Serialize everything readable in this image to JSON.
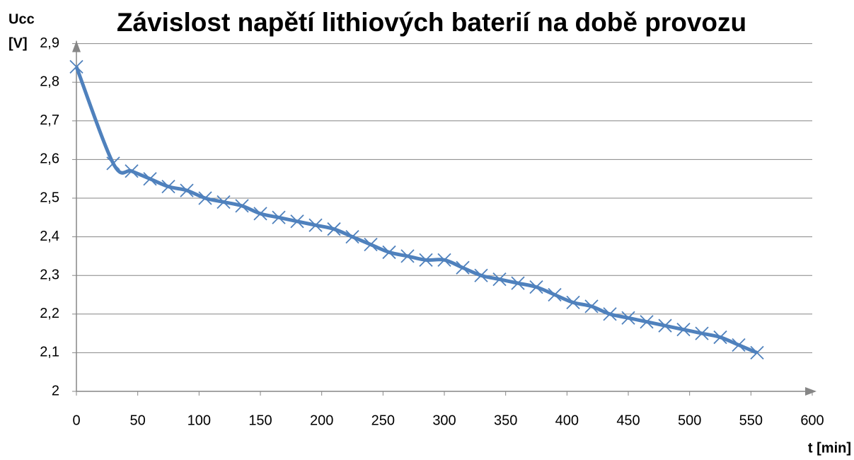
{
  "chart_data": {
    "type": "line",
    "title": "Závislost napětí lithiových baterií na době provozu",
    "y_label": [
      "Ucc",
      "[V]"
    ],
    "x_label": "t [min]",
    "x": [
      0,
      30,
      45,
      60,
      75,
      90,
      105,
      120,
      135,
      150,
      165,
      180,
      195,
      210,
      225,
      240,
      255,
      270,
      285,
      300,
      315,
      330,
      345,
      360,
      375,
      390,
      405,
      420,
      435,
      450,
      465,
      480,
      495,
      510,
      525,
      540,
      555
    ],
    "series": [
      {
        "color": "#4f81bd",
        "values": [
          2.84,
          2.59,
          2.57,
          2.55,
          2.53,
          2.52,
          2.5,
          2.49,
          2.48,
          2.46,
          2.45,
          2.44,
          2.43,
          2.42,
          2.4,
          2.38,
          2.36,
          2.35,
          2.34,
          2.34,
          2.32,
          2.3,
          2.29,
          2.28,
          2.27,
          2.25,
          2.23,
          2.22,
          2.2,
          2.19,
          2.18,
          2.17,
          2.16,
          2.15,
          2.14,
          2.12,
          2.1
        ]
      }
    ],
    "xlim": [
      0,
      600
    ],
    "xticks": [
      0,
      50,
      100,
      150,
      200,
      250,
      300,
      350,
      400,
      450,
      500,
      550,
      600
    ],
    "ylim": [
      2,
      2.9
    ],
    "yticks": [
      2,
      {
        "value": 2.1,
        "label": "2,1"
      },
      {
        "value": 2.2,
        "label": "2,2"
      },
      {
        "value": 2.3,
        "label": "2,3"
      },
      {
        "value": 2.4,
        "label": "2,4"
      },
      {
        "value": 2.5,
        "label": "2,5"
      },
      {
        "value": 2.6,
        "label": "2,6"
      },
      {
        "value": 2.7,
        "label": "2,7"
      },
      {
        "value": 2.8,
        "label": "2,8"
      },
      {
        "value": 2.9,
        "label": "2,9"
      }
    ],
    "grid": true
  }
}
